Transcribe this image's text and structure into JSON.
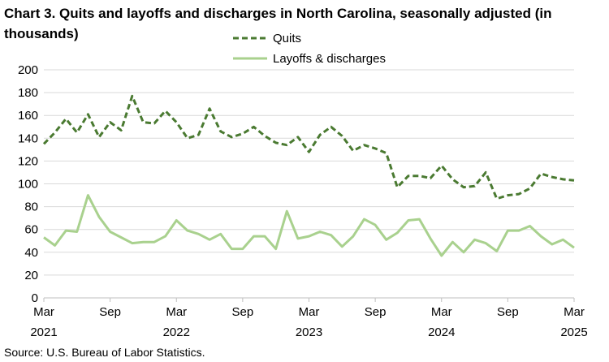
{
  "chart_data": {
    "type": "line",
    "title": "Chart 3. Quits and layoffs and discharges in North Carolina, seasonally adjusted (in thousands)",
    "source": "Source: U.S. Bureau of Labor Statistics.",
    "xlabel": "",
    "ylabel": "",
    "ylim": [
      0,
      200
    ],
    "y_ticks": [
      0,
      20,
      40,
      60,
      80,
      100,
      120,
      140,
      160,
      180,
      200
    ],
    "grid": true,
    "legend_position": "top-center",
    "x_tick_labels": [
      {
        "month": "Mar",
        "year": "2021"
      },
      {
        "month": "Sep",
        "year": ""
      },
      {
        "month": "Mar",
        "year": "2022"
      },
      {
        "month": "Sep",
        "year": ""
      },
      {
        "month": "Mar",
        "year": "2023"
      },
      {
        "month": "Sep",
        "year": ""
      },
      {
        "month": "Mar",
        "year": "2024"
      },
      {
        "month": "Sep",
        "year": ""
      },
      {
        "month": "Mar",
        "year": "2025"
      }
    ],
    "x": [
      "Mar 2021",
      "Apr 2021",
      "May 2021",
      "Jun 2021",
      "Jul 2021",
      "Aug 2021",
      "Sep 2021",
      "Oct 2021",
      "Nov 2021",
      "Dec 2021",
      "Jan 2022",
      "Feb 2022",
      "Mar 2022",
      "Apr 2022",
      "May 2022",
      "Jun 2022",
      "Jul 2022",
      "Aug 2022",
      "Sep 2022",
      "Oct 2022",
      "Nov 2022",
      "Dec 2022",
      "Jan 2023",
      "Feb 2023",
      "Mar 2023",
      "Apr 2023",
      "May 2023",
      "Jun 2023",
      "Jul 2023",
      "Aug 2023",
      "Sep 2023",
      "Oct 2023",
      "Nov 2023",
      "Dec 2023",
      "Jan 2024",
      "Feb 2024",
      "Mar 2024",
      "Apr 2024",
      "May 2024",
      "Jun 2024",
      "Jul 2024",
      "Aug 2024",
      "Sep 2024",
      "Oct 2024",
      "Nov 2024",
      "Dec 2024",
      "Jan 2025",
      "Feb 2025",
      "Mar 2025"
    ],
    "series": [
      {
        "name": "Quits",
        "color": "#4a7a31",
        "style": "dashed",
        "values": [
          135,
          145,
          157,
          145,
          161,
          141,
          154,
          147,
          177,
          154,
          153,
          164,
          154,
          140,
          143,
          166,
          146,
          141,
          144,
          150,
          142,
          136,
          134,
          141,
          128,
          143,
          150,
          142,
          129,
          134,
          131,
          127,
          97,
          107,
          107,
          105,
          116,
          104,
          97,
          98,
          110,
          87,
          90,
          91,
          96,
          109,
          106,
          104,
          103
        ]
      },
      {
        "name": "Layoffs & discharges",
        "color": "#a9d18e",
        "style": "solid",
        "values": [
          53,
          46,
          59,
          58,
          90,
          71,
          58,
          53,
          48,
          49,
          49,
          54,
          68,
          59,
          56,
          51,
          56,
          43,
          43,
          54,
          54,
          43,
          76,
          52,
          54,
          58,
          55,
          45,
          54,
          69,
          64,
          51,
          57,
          68,
          69,
          52,
          37,
          49,
          40,
          51,
          48,
          41,
          59,
          59,
          63,
          54,
          47,
          51,
          44
        ]
      }
    ]
  }
}
